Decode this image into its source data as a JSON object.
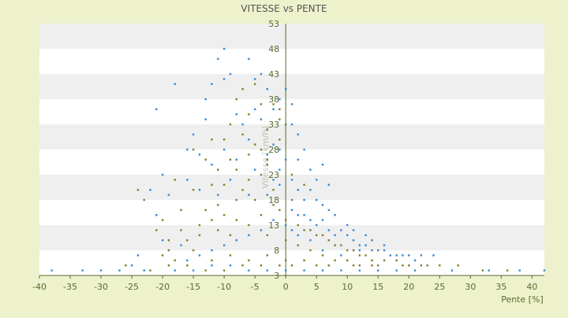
{
  "chart_data": {
    "type": "scatter",
    "title": "VITESSE vs PENTE",
    "xlabel": "Pente [%]",
    "ylabel": "Vitesse [km/h]",
    "xlim": [
      -40,
      42
    ],
    "ylim": [
      3,
      53
    ],
    "x_ticks": [
      -40,
      -35,
      -30,
      -25,
      -20,
      -15,
      -10,
      -5,
      0,
      5,
      10,
      15,
      20,
      25,
      30,
      35,
      40
    ],
    "y_ticks": [
      3,
      8,
      13,
      18,
      23,
      28,
      33,
      38,
      43,
      48,
      53
    ],
    "grid": true,
    "legend": "none",
    "colors": {
      "background": "#eef2cc",
      "plot_band_light": "#ffffff",
      "plot_band_dark": "#efefef",
      "axis": "#556b2f",
      "title": "#555555",
      "series_blue": "#3a86d4",
      "series_olive": "#7d7d2c"
    },
    "series": [
      {
        "color": "#3a86d4",
        "points": [
          [
            -10,
            48
          ],
          [
            -11,
            46
          ],
          [
            -6,
            46
          ],
          [
            -9,
            43
          ],
          [
            -10,
            42
          ],
          [
            -4,
            43
          ],
          [
            -12,
            41
          ],
          [
            -18,
            41
          ],
          [
            -5,
            42
          ],
          [
            -3,
            40
          ],
          [
            -13,
            38
          ],
          [
            -1,
            38
          ],
          [
            0,
            40
          ],
          [
            1,
            37
          ],
          [
            -21,
            36
          ],
          [
            -2,
            36
          ],
          [
            -8,
            35
          ],
          [
            -13,
            34
          ],
          [
            -4,
            34
          ],
          [
            1,
            33
          ],
          [
            -15,
            31
          ],
          [
            -6,
            30
          ],
          [
            -2,
            29
          ],
          [
            -10,
            28
          ],
          [
            -16,
            28
          ],
          [
            -14,
            27
          ],
          [
            -3,
            27
          ],
          [
            -8,
            26
          ],
          [
            -12,
            25
          ],
          [
            -5,
            24
          ],
          [
            -1,
            24
          ],
          [
            -20,
            23
          ],
          [
            -16,
            22
          ],
          [
            -9,
            22
          ],
          [
            -2,
            22
          ],
          [
            -22,
            20
          ],
          [
            -19,
            19
          ],
          [
            -14,
            20
          ],
          [
            -11,
            19
          ],
          [
            -6,
            19
          ],
          [
            -3,
            19
          ],
          [
            -1,
            21
          ],
          [
            1,
            22
          ],
          [
            2,
            20
          ],
          [
            3,
            18
          ],
          [
            4,
            20
          ],
          [
            5,
            18
          ],
          [
            6,
            17
          ],
          [
            7,
            16
          ],
          [
            8,
            15
          ],
          [
            1,
            16
          ],
          [
            2,
            15
          ],
          [
            3,
            15
          ],
          [
            4,
            14
          ],
          [
            5,
            13
          ],
          [
            6,
            14
          ],
          [
            7,
            12
          ],
          [
            8,
            11
          ],
          [
            9,
            12
          ],
          [
            10,
            11
          ],
          [
            11,
            10
          ],
          [
            12,
            9
          ],
          [
            13,
            9
          ],
          [
            14,
            8
          ],
          [
            15,
            8
          ],
          [
            16,
            8
          ],
          [
            17,
            7
          ],
          [
            18,
            7
          ],
          [
            19,
            7
          ],
          [
            20,
            7
          ],
          [
            21,
            6
          ],
          [
            22,
            7
          ],
          [
            24,
            7
          ],
          [
            -17,
            9
          ],
          [
            -24,
            7
          ],
          [
            -25,
            5
          ],
          [
            -23,
            4
          ],
          [
            -18,
            4
          ],
          [
            -15,
            4
          ],
          [
            -12,
            5
          ],
          [
            -9,
            5
          ],
          [
            -6,
            4
          ],
          [
            -3,
            4
          ],
          [
            0,
            4
          ],
          [
            3,
            4
          ],
          [
            6,
            4
          ],
          [
            9,
            4
          ],
          [
            12,
            4
          ],
          [
            15,
            4
          ],
          [
            18,
            4
          ],
          [
            21,
            4
          ],
          [
            -27,
            4
          ],
          [
            -33,
            4
          ],
          [
            -38,
            4
          ],
          [
            -30,
            4
          ],
          [
            27,
            4
          ],
          [
            33,
            4
          ],
          [
            38,
            4
          ],
          [
            42,
            4
          ],
          [
            2,
            26
          ],
          [
            3,
            28
          ],
          [
            4,
            24
          ],
          [
            5,
            22
          ],
          [
            6,
            25
          ],
          [
            7,
            21
          ],
          [
            0,
            26
          ],
          [
            -1,
            28
          ],
          [
            -7,
            33
          ],
          [
            -5,
            36
          ],
          [
            2,
            31
          ],
          [
            10,
            13
          ],
          [
            11,
            12
          ],
          [
            13,
            11
          ],
          [
            14,
            10
          ],
          [
            16,
            9
          ],
          [
            12,
            8
          ],
          [
            9,
            7
          ],
          [
            6,
            8
          ],
          [
            4,
            10
          ],
          [
            2,
            11
          ],
          [
            1,
            12
          ],
          [
            0,
            13
          ],
          [
            -2,
            14
          ],
          [
            -4,
            12
          ],
          [
            -6,
            11
          ],
          [
            -8,
            10
          ],
          [
            -10,
            9
          ],
          [
            -12,
            8
          ],
          [
            -14,
            7
          ],
          [
            -16,
            6
          ],
          [
            -20,
            10
          ],
          [
            -21,
            15
          ]
        ]
      },
      {
        "color": "#7d7d2c",
        "points": [
          [
            -5,
            41
          ],
          [
            -7,
            40
          ],
          [
            -2,
            37
          ],
          [
            -4,
            37
          ],
          [
            -6,
            35
          ],
          [
            -1,
            34
          ],
          [
            -9,
            33
          ],
          [
            -3,
            32
          ],
          [
            -7,
            31
          ],
          [
            -12,
            30
          ],
          [
            -10,
            30
          ],
          [
            -5,
            29
          ],
          [
            -15,
            28
          ],
          [
            -13,
            26
          ],
          [
            -6,
            27
          ],
          [
            -3,
            26
          ],
          [
            -11,
            24
          ],
          [
            -8,
            24
          ],
          [
            -4,
            23
          ],
          [
            -18,
            22
          ],
          [
            -15,
            20
          ],
          [
            -12,
            21
          ],
          [
            -7,
            20
          ],
          [
            -5,
            18
          ],
          [
            -2,
            17
          ],
          [
            -17,
            16
          ],
          [
            -13,
            16
          ],
          [
            -10,
            15
          ],
          [
            -8,
            14
          ],
          [
            -4,
            15
          ],
          [
            -1,
            16
          ],
          [
            0,
            14
          ],
          [
            1,
            18
          ],
          [
            2,
            13
          ],
          [
            3,
            12
          ],
          [
            4,
            12
          ],
          [
            5,
            11
          ],
          [
            6,
            11
          ],
          [
            7,
            10
          ],
          [
            8,
            9
          ],
          [
            9,
            9
          ],
          [
            10,
            8
          ],
          [
            11,
            8
          ],
          [
            12,
            7
          ],
          [
            13,
            7
          ],
          [
            14,
            6
          ],
          [
            16,
            6
          ],
          [
            18,
            6
          ],
          [
            20,
            5
          ],
          [
            22,
            5
          ],
          [
            25,
            5
          ],
          [
            -21,
            12
          ],
          [
            -19,
            8
          ],
          [
            -16,
            10
          ],
          [
            -14,
            11
          ],
          [
            -11,
            12
          ],
          [
            -9,
            11
          ],
          [
            -6,
            13
          ],
          [
            -3,
            11
          ],
          [
            0,
            10
          ],
          [
            2,
            9
          ],
          [
            4,
            8
          ],
          [
            6,
            7
          ],
          [
            8,
            6
          ],
          [
            10,
            6
          ],
          [
            12,
            5
          ],
          [
            14,
            5
          ],
          [
            -23,
            18
          ],
          [
            -20,
            14
          ],
          [
            -18,
            6
          ],
          [
            -15,
            8
          ],
          [
            -12,
            6
          ],
          [
            -9,
            7
          ],
          [
            -6,
            6
          ],
          [
            -3,
            7
          ],
          [
            0,
            6
          ],
          [
            3,
            6
          ],
          [
            5,
            5
          ],
          [
            -26,
            5
          ],
          [
            -22,
            4
          ],
          [
            -19,
            5
          ],
          [
            -16,
            5
          ],
          [
            -13,
            4
          ],
          [
            -10,
            4
          ],
          [
            -7,
            5
          ],
          [
            -4,
            5
          ],
          [
            -1,
            5
          ],
          [
            1,
            5
          ],
          [
            7,
            5
          ],
          [
            11,
            5
          ],
          [
            15,
            5
          ],
          [
            19,
            5
          ],
          [
            23,
            5
          ],
          [
            28,
            5
          ],
          [
            32,
            4
          ],
          [
            36,
            4
          ],
          [
            -24,
            20
          ],
          [
            -1,
            30
          ],
          [
            -3,
            25
          ],
          [
            -8,
            18
          ],
          [
            -10,
            21
          ],
          [
            -11,
            17
          ],
          [
            -2,
            20
          ],
          [
            1,
            23
          ],
          [
            3,
            21
          ],
          [
            -6,
            22
          ],
          [
            -12,
            14
          ],
          [
            -14,
            13
          ],
          [
            -17,
            12
          ],
          [
            -19,
            10
          ],
          [
            -20,
            7
          ],
          [
            -9,
            26
          ],
          [
            -4,
            28
          ],
          [
            0,
            33
          ],
          [
            -1,
            36
          ],
          [
            -8,
            38
          ]
        ]
      }
    ]
  }
}
